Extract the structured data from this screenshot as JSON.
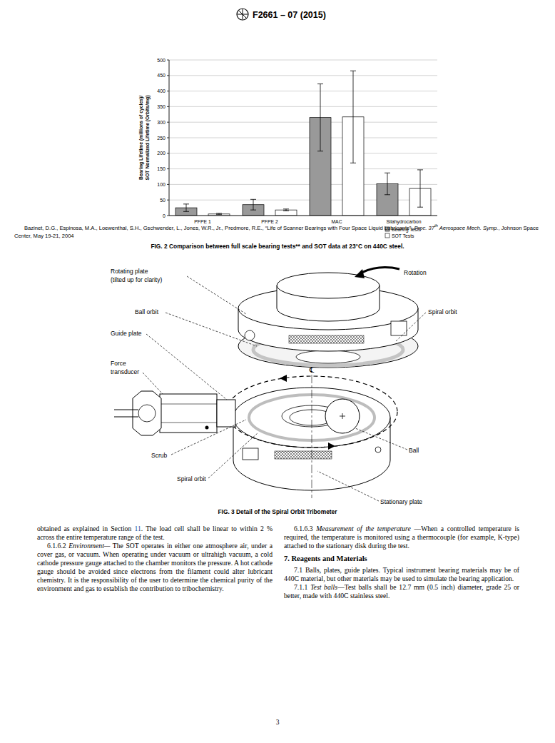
{
  "header": {
    "designation": "F2661 – 07 (2015)"
  },
  "chart_data": {
    "type": "bar",
    "categories": [
      "PFPE 1",
      "PFPE 2",
      "MAC",
      "Silahydrocarbon"
    ],
    "y_label": [
      "Bearing Lifetime (millions of cycles)/",
      "SOT Normalized Lifetime (Orbits/mg)"
    ],
    "series": [
      {
        "name": "Bearing Tests",
        "color": "#999999",
        "values": [
          25,
          35,
          315,
          102
        ],
        "errors": [
          12,
          17,
          108,
          35
        ]
      },
      {
        "name": "SOT Tests",
        "color": "#ffffff",
        "values": [
          5,
          18,
          317,
          87
        ],
        "errors": [
          2,
          3,
          148,
          60
        ]
      }
    ],
    "ylim": [
      0,
      500
    ],
    "yticks": [
      0,
      50,
      100,
      150,
      200,
      250,
      300,
      350,
      400,
      450,
      500
    ],
    "grid": true,
    "legend": "lower right"
  },
  "figure2": {
    "citation": {
      "authors": "Bazinet, D.G., Espinosa, M.A., Loewenthal, S.H., Gschwender, L., Jones, W.R., Jr., Predmore, R.E., “Life of Scanner Bearings with Four Space Liquid Lubricants”, ",
      "proc_start": "Proc. 37",
      "proc_sup": "th",
      "proc_end": " Aerospace Mech. Symp.",
      "tail": ", Johnson Space Center, May 19-21, 2004"
    },
    "caption": "FIG. 2 Comparison between full scale bearing tests** and SOT data at 23°C on 440C steel."
  },
  "figure3": {
    "centerline": "℄",
    "labels": [
      {
        "lines": [
          "Rotating plate",
          "(tilted up for clarity)"
        ]
      },
      {
        "lines": [
          "Rotation"
        ]
      },
      {
        "lines": [
          "Ball orbit"
        ]
      },
      {
        "lines": [
          "Spiral orbit"
        ]
      },
      {
        "lines": [
          "Guide plate"
        ]
      },
      {
        "lines": [
          "Force",
          "transducer"
        ]
      },
      {
        "lines": [
          "Scrub"
        ]
      },
      {
        "lines": [
          "Spiral orbit"
        ]
      },
      {
        "lines": [
          "Ball"
        ]
      },
      {
        "lines": [
          "Stationary plate"
        ]
      }
    ],
    "caption": "FIG. 3 Detail of the Spiral Orbit Tribometer"
  },
  "columns": [
    [
      {
        "text": "obtained as explained in Section ",
        "link": "11",
        "text_after": ". The load cell shall be linear to within 2 % across the entire temperature range of the test."
      },
      {
        "number": "6.1.6.2",
        "heading": "Environment—",
        "text": " The SOT operates in either one atmosphere air, under a cover gas, or vacuum. When operating under vacuum or ultrahigh vacuum, a cold cathode pressure gauge attached to the chamber monitors the pressure. A hot cathode gauge should be avoided since electrons from the filament could alter lubricant chemistry. It is the responsibility of the user to determine the chemical purity of the environment and gas to establish the contribution to tribochemistry."
      }
    ],
    [
      {
        "number": "6.1.6.3",
        "heading": "Measurement of the temperature",
        "text": " —When a controlled temperature is required, the temperature is monitored using a thermocouple (for example, K-type) attached to the stationary disk during the test."
      },
      {
        "section": "7. Reagents and Materials"
      },
      {
        "number": "7.1",
        "text": "Balls, plates, guide plates. Typical instrument bearing materials may be of 440C material, but other materials may be used to simulate the bearing application."
      },
      {
        "number": "7.1.1",
        "heading": "Test balls",
        "text": "—Test balls shall be 12.7 mm (0.5 inch) diameter, grade 25 or better, made with 440C stainless steel."
      }
    ]
  ],
  "page_number": "3"
}
